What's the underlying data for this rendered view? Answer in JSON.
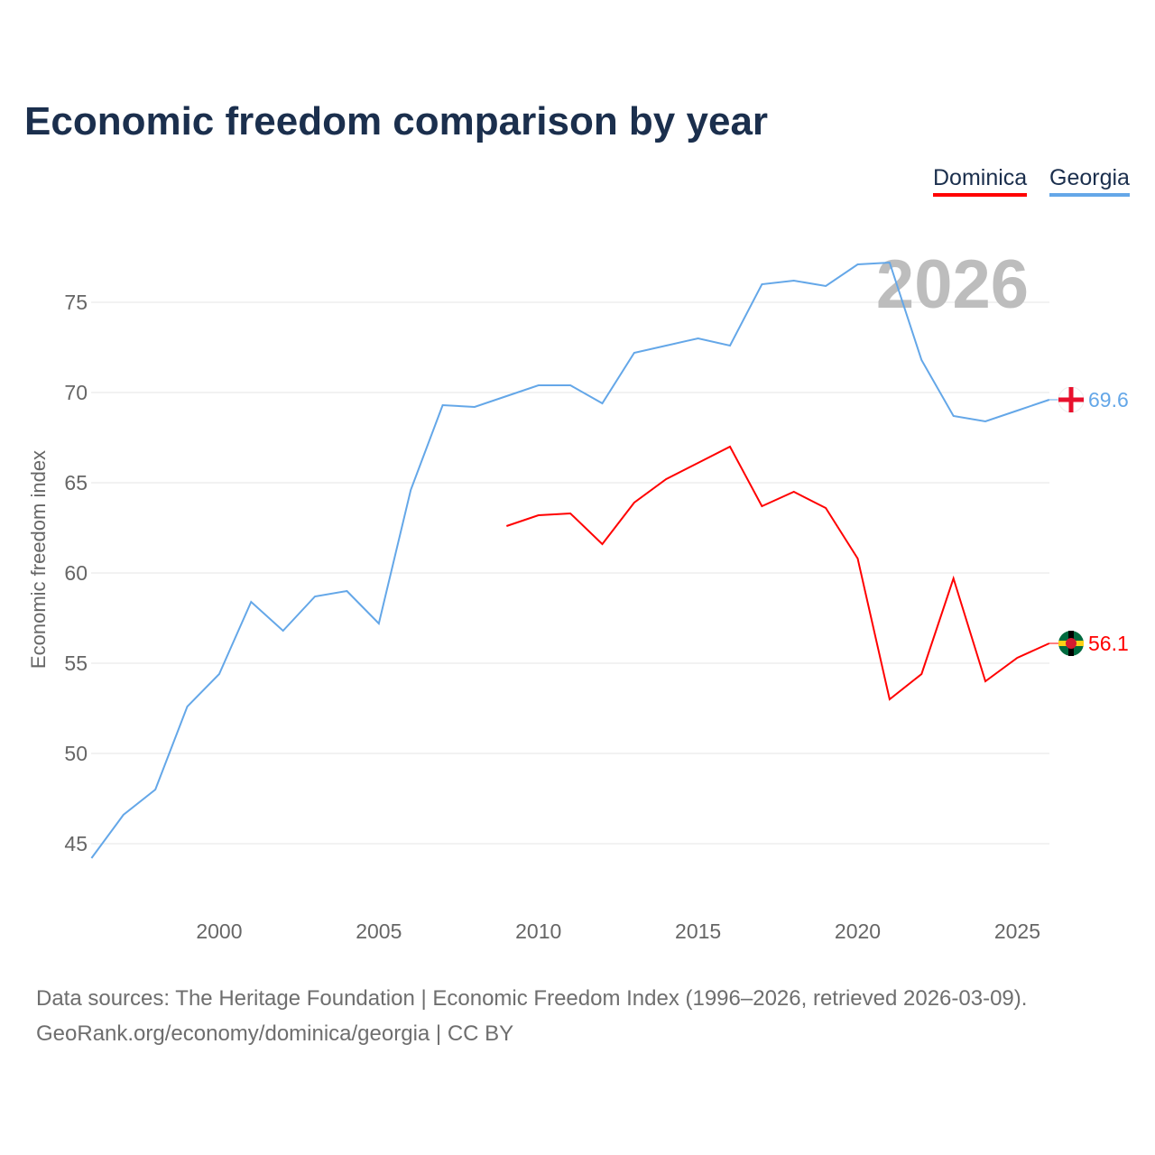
{
  "title": "Economic freedom comparison by year",
  "chart_data": {
    "type": "line",
    "title": "Economic freedom comparison by year",
    "xlabel": "",
    "ylabel": "Economic freedom index",
    "xlim": [
      1996,
      2026
    ],
    "ylim": [
      42,
      80
    ],
    "x_ticks": [
      2000,
      2005,
      2010,
      2015,
      2020,
      2025
    ],
    "y_ticks": [
      45,
      50,
      55,
      60,
      65,
      70,
      75
    ],
    "year_label": "2026",
    "legend": "top-right",
    "series": [
      {
        "name": "Dominica",
        "color": "#ff0000",
        "end_label": "56.1",
        "x": [
          2009,
          2010,
          2011,
          2012,
          2013,
          2014,
          2015,
          2016,
          2017,
          2018,
          2019,
          2020,
          2021,
          2022,
          2023,
          2024,
          2025,
          2026
        ],
        "values": [
          62.6,
          63.2,
          63.3,
          61.6,
          63.9,
          65.2,
          66.1,
          67.0,
          63.7,
          64.5,
          63.6,
          60.8,
          53.0,
          54.4,
          59.7,
          54.0,
          55.3,
          56.1
        ]
      },
      {
        "name": "Georgia",
        "color": "#64a7e8",
        "end_label": "69.6",
        "x": [
          1996,
          1997,
          1998,
          1999,
          2000,
          2001,
          2002,
          2003,
          2004,
          2005,
          2006,
          2007,
          2008,
          2009,
          2010,
          2011,
          2012,
          2013,
          2014,
          2015,
          2016,
          2017,
          2018,
          2019,
          2020,
          2021,
          2022,
          2023,
          2024,
          2025,
          2026
        ],
        "values": [
          44.2,
          46.6,
          48.0,
          52.6,
          54.4,
          58.4,
          56.8,
          58.7,
          59.0,
          57.2,
          64.6,
          69.3,
          69.2,
          69.8,
          70.4,
          70.4,
          69.4,
          72.2,
          72.6,
          73.0,
          72.6,
          76.0,
          76.2,
          75.9,
          77.1,
          77.2,
          71.8,
          68.7,
          68.4,
          69.0,
          69.6
        ]
      }
    ]
  },
  "footer": {
    "line1": "Data sources: The Heritage Foundation | Economic Freedom Index (1996–2026, retrieved 2026-03-09).",
    "line2": "GeoRank.org/economy/dominica/georgia | CC BY"
  }
}
